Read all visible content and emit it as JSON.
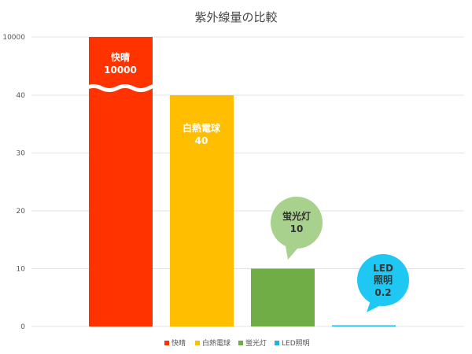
{
  "chart_data": {
    "type": "bar",
    "title": "紫外線量の比較",
    "y_scale": "broken",
    "y_ticks": [
      "0",
      "10",
      "20",
      "30",
      "40",
      "10000"
    ],
    "ylim": [
      0,
      10000
    ],
    "grid": true,
    "legend_position": "bottom",
    "categories": [
      "快晴",
      "白熱電球",
      "蛍光灯",
      "LED照明"
    ],
    "values": [
      10000,
      40,
      10,
      0.2
    ],
    "colors": [
      "#ff3300",
      "#ffbf00",
      "#70ad47",
      "#1fb3e6"
    ],
    "data_labels": [
      {
        "name": "快晴",
        "value": "10000"
      },
      {
        "name": "白熱電球",
        "value": "40"
      },
      {
        "name": "蛍光灯",
        "value": "10"
      },
      {
        "name1": "LED",
        "name2": "照明",
        "value": "0.2"
      }
    ],
    "legend": [
      "快晴",
      "白熱電球",
      "蛍光灯",
      "LED照明"
    ]
  }
}
